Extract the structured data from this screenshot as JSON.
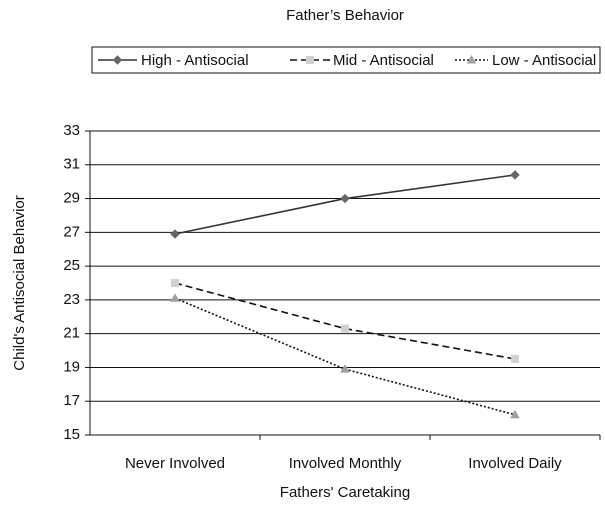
{
  "chart_data": {
    "type": "line",
    "title": "Father’s Behavior",
    "categories": [
      "Never Involved",
      "Involved Monthly",
      "Involved Daily"
    ],
    "series": [
      {
        "name": "High - Antisocial",
        "color": "#333333",
        "style": "solid",
        "marker": "diamond",
        "marker_color": "#666666",
        "values": [
          26.9,
          29.0,
          30.4
        ]
      },
      {
        "name": "Mid - Antisocial",
        "color": "#111111",
        "style": "dashed",
        "marker": "square",
        "marker_color": "#d0d0d0",
        "values": [
          24.0,
          21.3,
          19.5
        ]
      },
      {
        "name": "Low - Antisocial",
        "color": "#111111",
        "style": "dotted",
        "marker": "triangle",
        "marker_color": "#a0a0a0",
        "values": [
          23.1,
          18.9,
          16.2
        ]
      }
    ],
    "ylim": [
      15,
      33
    ],
    "yticks": [
      15,
      17,
      19,
      21,
      23,
      25,
      27,
      29,
      31,
      33
    ],
    "grid": true,
    "xlabel": "Fathers' Caretaking",
    "ylabel": "Child's Antisocial Behavior",
    "legend": "top"
  }
}
